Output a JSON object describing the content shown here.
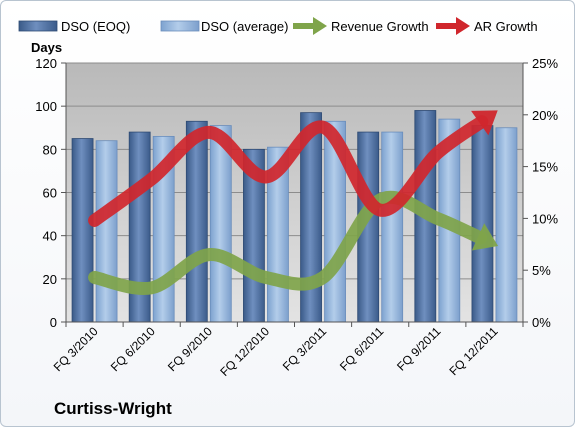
{
  "chart_data": {
    "type": "bar",
    "title": "",
    "company": "Curtiss-Wright",
    "categories": [
      "FQ 3/2010",
      "FQ 6/2010",
      "FQ 9/2010",
      "FQ 12/2010",
      "FQ 3/2011",
      "FQ 6/2011",
      "FQ 9/2011",
      "FQ 12/2011"
    ],
    "y_left": {
      "label": "Days",
      "lim": [
        0,
        120
      ],
      "ticks": [
        "0",
        "20",
        "40",
        "60",
        "80",
        "100",
        "120"
      ]
    },
    "y_right": {
      "lim": [
        0,
        25
      ],
      "ticks": [
        "0%",
        "5%",
        "10%",
        "15%",
        "20%",
        "25%"
      ]
    },
    "bar_series": [
      {
        "name": "DSO (EOQ)",
        "axis": "left",
        "color": "#4f6f9e",
        "values": [
          85,
          88,
          93,
          80,
          97,
          88,
          98,
          91
        ]
      },
      {
        "name": "DSO (average)",
        "axis": "left",
        "color": "#8fb0d8",
        "values": [
          84,
          86,
          91,
          81,
          93,
          88,
          94,
          90
        ]
      }
    ],
    "line_series": [
      {
        "name": "Revenue Growth",
        "axis": "right",
        "color": "#7fa44a",
        "values": [
          4.3,
          3.3,
          6.5,
          4.3,
          4.3,
          11.8,
          10.0,
          7.5
        ]
      },
      {
        "name": "AR Growth",
        "axis": "right",
        "color": "#d0262c",
        "values": [
          9.8,
          13.8,
          18.3,
          14.0,
          18.8,
          10.8,
          16.3,
          20.2
        ]
      }
    ],
    "grid": true,
    "legend_position": "top"
  }
}
